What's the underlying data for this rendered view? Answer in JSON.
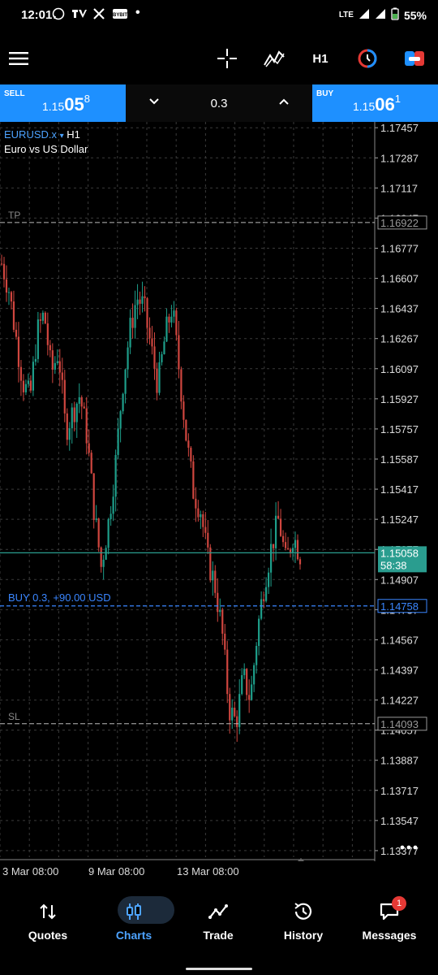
{
  "status": {
    "time": "12:01",
    "notifications": [
      "whatsapp-icon",
      "tv-icon",
      "x-icon",
      "bybit-icon"
    ],
    "dot": "•",
    "network": "LTE",
    "battery": "55%"
  },
  "toolbar": {
    "timeframe": "H1",
    "icons": [
      "menu-icon",
      "crosshair-icon",
      "indicators-icon",
      "timeframe",
      "objects-icon",
      "trade-panel-icon"
    ]
  },
  "trade": {
    "sell_label": "SELL",
    "sell_small": "1.15",
    "sell_big": "05",
    "sell_sup": "8",
    "buy_label": "BUY",
    "buy_small": "1.15",
    "buy_big": "06",
    "buy_sup": "1",
    "lot": "0.3"
  },
  "symbol": {
    "code": "EURUSD.x",
    "caret": "▾",
    "timeframe": "H1",
    "description": "Euro vs US Dollar"
  },
  "colors": {
    "bull": "#1e9e8a",
    "bear": "#d0463f",
    "accent": "#1e90ff",
    "bid_line": "#2a9d8f",
    "order_line": "#3a86ff"
  },
  "chart_data": {
    "type": "candlestick",
    "y_ticks": [
      "1.17457",
      "1.17287",
      "1.17117",
      "1.16947",
      "1.16777",
      "1.16607",
      "1.16437",
      "1.16267",
      "1.16097",
      "1.15927",
      "1.15757",
      "1.15587",
      "1.15417",
      "1.15247",
      "1.15077",
      "1.14907",
      "1.14737",
      "1.14567",
      "1.14397",
      "1.14227",
      "1.14057",
      "1.13887",
      "1.13717",
      "1.13547",
      "1.13377"
    ],
    "ylim": [
      1.1334,
      1.1749
    ],
    "x_ticks": [
      "3 Mar 08:00",
      "9 Mar 08:00",
      "13 Mar 08:00"
    ],
    "levels": {
      "tp": {
        "label": "TP",
        "price": 1.16922,
        "text": "1.16922"
      },
      "sl": {
        "label": "SL",
        "price": 1.14093,
        "text": "1.14093"
      },
      "order": {
        "label": "BUY 0.3,  +90.00 USD",
        "price": 1.14758,
        "text": "1.14758"
      },
      "bid": {
        "price": 1.15058,
        "text": "1.15058",
        "countdown": "58:38"
      }
    },
    "path": [
      1.1669,
      1.1655,
      1.1628,
      1.1602,
      1.1593,
      1.163,
      1.1641,
      1.1607,
      1.162,
      1.1575,
      1.1585,
      1.1595,
      1.1572,
      1.153,
      1.1498,
      1.1522,
      1.1555,
      1.16,
      1.163,
      1.165,
      1.1645,
      1.1622,
      1.16,
      1.1628,
      1.1645,
      1.1608,
      1.157,
      1.154,
      1.153,
      1.1502,
      1.1488,
      1.1462,
      1.1418,
      1.141,
      1.1436,
      1.1423,
      1.1462,
      1.149,
      1.151,
      1.1525,
      1.15,
      1.1516,
      1.1505
    ]
  },
  "nav": {
    "items": [
      {
        "label": "Quotes",
        "icon": "quotes-icon"
      },
      {
        "label": "Charts",
        "icon": "charts-icon"
      },
      {
        "label": "Trade",
        "icon": "trade-icon"
      },
      {
        "label": "History",
        "icon": "history-icon"
      },
      {
        "label": "Messages",
        "icon": "messages-icon",
        "badge": "1"
      }
    ],
    "active": "Charts"
  }
}
